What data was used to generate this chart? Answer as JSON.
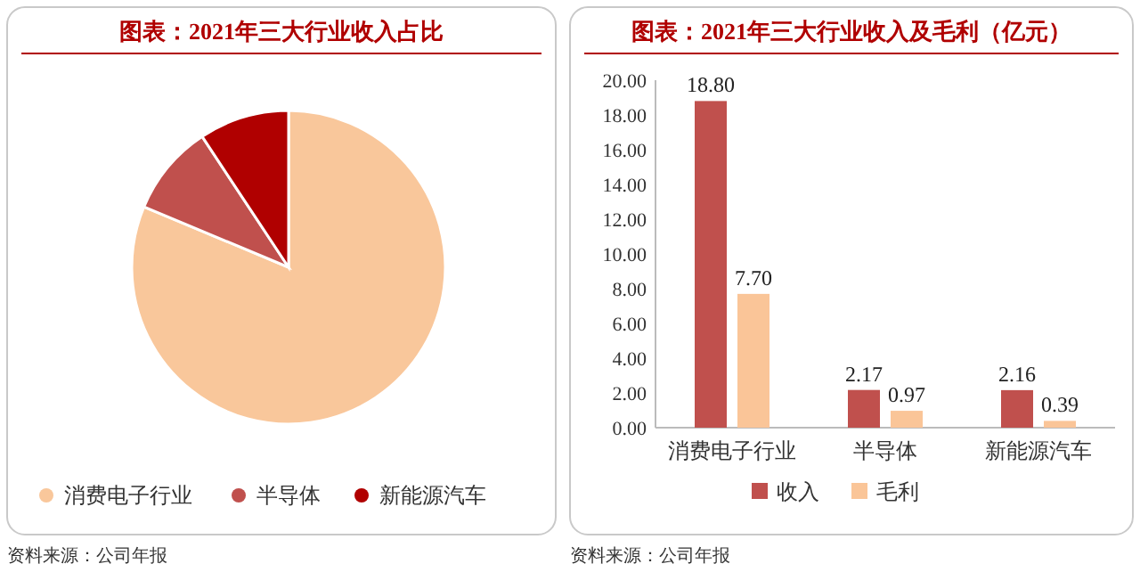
{
  "chart_data": [
    {
      "type": "pie",
      "title": "图表：2021年三大行业收入占比",
      "categories": [
        "消费电子行业",
        "半导体",
        "新能源汽车"
      ],
      "values": [
        81.3,
        9.4,
        9.3
      ],
      "colors": [
        "#f9c79b",
        "#c0504d",
        "#b00000"
      ],
      "legend": "bottom",
      "annotations": [
        "资料来源：公司年报"
      ]
    },
    {
      "type": "bar",
      "title": "图表：2021年三大行业收入及毛利（亿元）",
      "categories": [
        "消费电子行业",
        "半导体",
        "新能源汽车"
      ],
      "series": [
        {
          "name": "收入",
          "color": "#c0504d",
          "values": [
            18.8,
            2.17,
            2.16
          ],
          "value_labels": [
            "18.80",
            "2.17",
            "2.16"
          ]
        },
        {
          "name": "毛利",
          "color": "#fac598",
          "values": [
            7.7,
            0.97,
            0.39
          ],
          "value_labels": [
            "7.70",
            "0.97",
            "0.39"
          ]
        }
      ],
      "ylim": [
        0,
        20
      ],
      "yticks": [
        {
          "value": 0,
          "label": "0.00"
        },
        {
          "value": 2,
          "label": "2.00"
        },
        {
          "value": 4,
          "label": "4.00"
        },
        {
          "value": 6,
          "label": "6.00"
        },
        {
          "value": 8,
          "label": "8.00"
        },
        {
          "value": 10,
          "label": "10.00"
        },
        {
          "value": 12,
          "label": "12.00"
        },
        {
          "value": 14,
          "label": "14.00"
        },
        {
          "value": 16,
          "label": "16.00"
        },
        {
          "value": 18,
          "label": "18.00"
        },
        {
          "value": 20,
          "label": "20.00"
        }
      ],
      "grid": false,
      "legend": "bottom",
      "annotations": [
        "资料来源：公司年报"
      ]
    }
  ]
}
